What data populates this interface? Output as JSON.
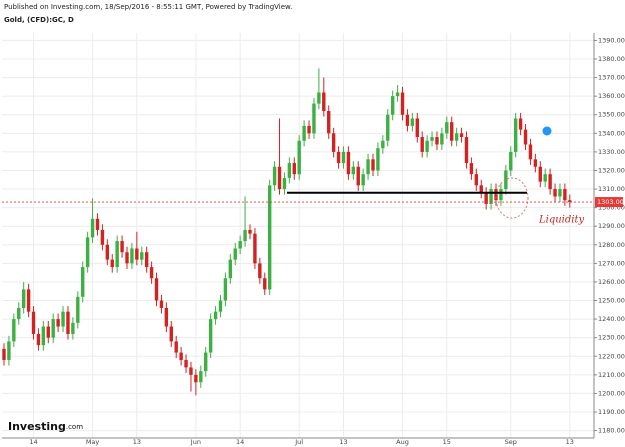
{
  "chart_data": {
    "type": "candlestick",
    "header": "Published on Investing.com, 18/Sep/2016 - 8:55:11 GMT, Powered by TradingView.",
    "title": "Gold, (CFD):GC, D",
    "categories": [
      null,
      null,
      null,
      null,
      null,
      null,
      "14",
      null,
      null,
      null,
      null,
      null,
      null,
      null,
      null,
      null,
      null,
      null,
      "May",
      null,
      null,
      null,
      null,
      null,
      null,
      null,
      null,
      "13",
      null,
      null,
      null,
      null,
      null,
      null,
      null,
      null,
      null,
      null,
      null,
      "Jun",
      null,
      null,
      null,
      null,
      null,
      null,
      null,
      null,
      "14",
      null,
      null,
      null,
      null,
      null,
      null,
      null,
      null,
      null,
      null,
      null,
      "Jul",
      null,
      null,
      null,
      null,
      null,
      null,
      null,
      null,
      "13",
      null,
      null,
      null,
      null,
      null,
      null,
      null,
      null,
      null,
      null,
      null,
      "Aug",
      null,
      null,
      null,
      null,
      null,
      null,
      null,
      null,
      "15",
      null,
      null,
      null,
      null,
      null,
      null,
      null,
      null,
      null,
      null,
      null,
      null,
      "Sep",
      null,
      null,
      null,
      null,
      null,
      null,
      null,
      null,
      null,
      null,
      null,
      "13"
    ],
    "open": [
      1224,
      1218,
      1228,
      1240,
      1246,
      1256,
      1244,
      1232,
      1226,
      1236,
      1230,
      1240,
      1236,
      1244,
      1232,
      1238,
      1252,
      1268,
      1284,
      1294,
      1288,
      1280,
      1272,
      1268,
      1282,
      1276,
      1270,
      1278,
      1272,
      1276,
      1268,
      1262,
      1250,
      1246,
      1236,
      1228,
      1222,
      1218,
      1214,
      1210,
      1206,
      1212,
      1222,
      1240,
      1244,
      1250,
      1262,
      1272,
      1278,
      1282,
      1288,
      1286,
      1270,
      1262,
      1256,
      1312,
      1322,
      1310,
      1316,
      1324,
      1318,
      1336,
      1344,
      1340,
      1356,
      1362,
      1352,
      1340,
      1330,
      1324,
      1330,
      1318,
      1322,
      1312,
      1318,
      1326,
      1320,
      1332,
      1336,
      1350,
      1360,
      1362,
      1350,
      1344,
      1348,
      1338,
      1330,
      1336,
      1338,
      1334,
      1340,
      1346,
      1336,
      1340,
      1338,
      1324,
      1318,
      1312,
      1308,
      1302,
      1310,
      1304,
      1310,
      1320,
      1330,
      1348,
      1342,
      1334,
      1326,
      1322,
      1314,
      1318,
      1310,
      1306,
      1310,
      1304
    ],
    "high": [
      1227,
      1231,
      1243,
      1249,
      1260,
      1259,
      1247,
      1235,
      1239,
      1239,
      1243,
      1243,
      1247,
      1247,
      1241,
      1255,
      1271,
      1287,
      1305,
      1297,
      1291,
      1283,
      1275,
      1285,
      1285,
      1279,
      1281,
      1287,
      1279,
      1279,
      1271,
      1265,
      1253,
      1249,
      1239,
      1231,
      1225,
      1221,
      1217,
      1213,
      1215,
      1225,
      1243,
      1247,
      1253,
      1265,
      1275,
      1281,
      1285,
      1306,
      1291,
      1289,
      1273,
      1265,
      1315,
      1325,
      1348,
      1319,
      1327,
      1327,
      1339,
      1347,
      1347,
      1359,
      1375,
      1370,
      1355,
      1343,
      1333,
      1333,
      1333,
      1325,
      1325,
      1321,
      1329,
      1329,
      1335,
      1339,
      1353,
      1363,
      1366,
      1365,
      1353,
      1351,
      1351,
      1341,
      1339,
      1341,
      1341,
      1343,
      1349,
      1349,
      1343,
      1343,
      1341,
      1327,
      1321,
      1315,
      1311,
      1313,
      1313,
      1313,
      1323,
      1333,
      1351,
      1351,
      1345,
      1337,
      1329,
      1325,
      1321,
      1321,
      1313,
      1313,
      1313,
      1307
    ],
    "low": [
      1215,
      1215,
      1225,
      1237,
      1243,
      1241,
      1229,
      1223,
      1223,
      1227,
      1227,
      1233,
      1233,
      1229,
      1229,
      1235,
      1249,
      1265,
      1281,
      1285,
      1277,
      1269,
      1265,
      1265,
      1273,
      1267,
      1267,
      1269,
      1269,
      1265,
      1259,
      1247,
      1243,
      1233,
      1225,
      1219,
      1215,
      1211,
      1201,
      1199,
      1203,
      1209,
      1219,
      1237,
      1241,
      1247,
      1259,
      1269,
      1275,
      1279,
      1283,
      1267,
      1259,
      1253,
      1253,
      1309,
      1307,
      1307,
      1313,
      1315,
      1315,
      1333,
      1337,
      1337,
      1353,
      1349,
      1337,
      1327,
      1321,
      1321,
      1315,
      1315,
      1309,
      1309,
      1315,
      1317,
      1317,
      1329,
      1333,
      1347,
      1357,
      1347,
      1341,
      1341,
      1335,
      1327,
      1327,
      1333,
      1331,
      1331,
      1337,
      1333,
      1333,
      1335,
      1321,
      1315,
      1309,
      1305,
      1299,
      1299,
      1301,
      1301,
      1307,
      1317,
      1327,
      1339,
      1331,
      1323,
      1319,
      1311,
      1311,
      1307,
      1303,
      1303,
      1301,
      1300
    ],
    "close": [
      1218,
      1228,
      1240,
      1246,
      1256,
      1244,
      1232,
      1226,
      1236,
      1230,
      1240,
      1236,
      1244,
      1232,
      1238,
      1252,
      1268,
      1284,
      1294,
      1288,
      1280,
      1272,
      1268,
      1282,
      1276,
      1270,
      1278,
      1272,
      1276,
      1268,
      1262,
      1250,
      1246,
      1236,
      1228,
      1222,
      1218,
      1214,
      1210,
      1206,
      1212,
      1222,
      1240,
      1244,
      1250,
      1262,
      1272,
      1278,
      1282,
      1288,
      1286,
      1270,
      1262,
      1256,
      1312,
      1322,
      1310,
      1316,
      1324,
      1318,
      1336,
      1344,
      1340,
      1356,
      1362,
      1352,
      1340,
      1330,
      1324,
      1330,
      1318,
      1322,
      1312,
      1318,
      1326,
      1320,
      1332,
      1336,
      1350,
      1360,
      1362,
      1350,
      1344,
      1348,
      1338,
      1330,
      1336,
      1338,
      1334,
      1340,
      1346,
      1336,
      1340,
      1338,
      1324,
      1318,
      1312,
      1308,
      1302,
      1310,
      1304,
      1310,
      1320,
      1330,
      1348,
      1342,
      1334,
      1326,
      1322,
      1314,
      1318,
      1310,
      1306,
      1310,
      1304,
      1303
    ],
    "up_color": "#3cb043",
    "down_color": "#d32222",
    "ylim": [
      1176,
      1394
    ],
    "yticks": [
      {
        "value": 1180,
        "label": "1180.00"
      },
      {
        "value": 1190,
        "label": "1190.00"
      },
      {
        "value": 1200,
        "label": "1200.00"
      },
      {
        "value": 1210,
        "label": "1210.00"
      },
      {
        "value": 1220,
        "label": "1220.00"
      },
      {
        "value": 1230,
        "label": "1230.00"
      },
      {
        "value": 1240,
        "label": "1240.00"
      },
      {
        "value": 1250,
        "label": "1250.00"
      },
      {
        "value": 1260,
        "label": "1260.00"
      },
      {
        "value": 1270,
        "label": "1270.00"
      },
      {
        "value": 1280,
        "label": "1280.00"
      },
      {
        "value": 1290,
        "label": "1290.00"
      },
      {
        "value": 1300,
        "label": "1300.00"
      },
      {
        "value": 1310,
        "label": "1310.00"
      },
      {
        "value": 1320,
        "label": "1320.00"
      },
      {
        "value": 1330,
        "label": "1330.00"
      },
      {
        "value": 1340,
        "label": "1340.00"
      },
      {
        "value": 1350,
        "label": "1350.00"
      },
      {
        "value": 1360,
        "label": "1360.00"
      },
      {
        "value": 1370,
        "label": "1370.00"
      },
      {
        "value": 1380,
        "label": "1380.00"
      },
      {
        "value": 1390,
        "label": "1390.00"
      }
    ],
    "grid": true,
    "last_price": {
      "value": 1303,
      "label": "1303.00"
    },
    "support_level": 1308,
    "annotation": "Liquidity",
    "brand": [
      "Investing",
      ".com"
    ]
  }
}
